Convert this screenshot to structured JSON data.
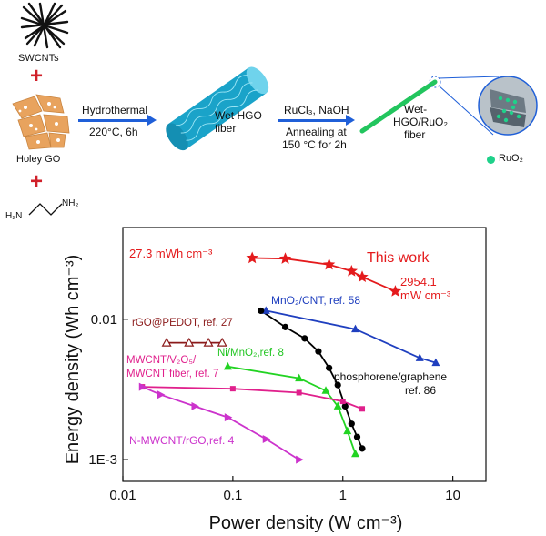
{
  "scheme": {
    "swcnt_label": "SWCNTs",
    "holey_go_label": "Holey GO",
    "amine_left": "H₂N",
    "amine_right": "NH₂",
    "step1_line1": "Hydrothermal",
    "step1_line2": "220°C, 6h",
    "wet_hgo_line1": "Wet HGO",
    "wet_hgo_line2": "fiber",
    "step2_line1": "RuCl₃, NaOH",
    "step2_line2": "Annealing at",
    "step2_line3": "150 °C for 2h",
    "product_line1": "Wet-",
    "product_line2": "HGO/RuO₂",
    "product_line3": "fiber",
    "legend_ruo2": "RuO₂",
    "colors": {
      "plus": "#d0202a",
      "arrow": "#1f5fd8",
      "go_sheet": "#e8a35e",
      "fiber": "#1aa3c9",
      "ruo2_fiber": "#22c55e",
      "ruo2_dot": "#1fd18a"
    }
  },
  "chart_data": {
    "type": "scatter",
    "xlabel": "Power density (W cm⁻³)",
    "ylabel": "Energy density (Wh cm⁻³)",
    "xscale": "log",
    "yscale": "log",
    "xlim": [
      0.01,
      20
    ],
    "ylim": [
      0.0007,
      0.045
    ],
    "xticks": [
      0.01,
      0.1,
      1,
      10
    ],
    "xtick_labels": [
      "0.01",
      "0.1",
      "1",
      "10"
    ],
    "yticks": [
      0.001,
      0.01
    ],
    "ytick_labels": [
      "1E-3",
      "0.01"
    ],
    "series": [
      {
        "name": "This work",
        "color": "#e41a1c",
        "marker": "star",
        "x": [
          0.15,
          0.3,
          0.75,
          1.2,
          1.5,
          3.0
        ],
        "y": [
          0.0273,
          0.027,
          0.0245,
          0.022,
          0.02,
          0.0158
        ]
      },
      {
        "name": "MnO₂/CNT, ref. 58",
        "color": "#1f3fbf",
        "marker": "triangle",
        "x": [
          0.2,
          1.3,
          5.0,
          7.0
        ],
        "y": [
          0.0115,
          0.0085,
          0.0053,
          0.0049
        ]
      },
      {
        "name": "phosphorene/graphene ref. 86",
        "color": "#000000",
        "marker": "circle",
        "x": [
          0.18,
          0.3,
          0.45,
          0.6,
          0.75,
          0.9,
          1.05,
          1.2,
          1.35,
          1.5
        ],
        "y": [
          0.0115,
          0.0088,
          0.0073,
          0.0059,
          0.0045,
          0.0034,
          0.0024,
          0.0018,
          0.00145,
          0.0012
        ]
      },
      {
        "name": "rGO@PEDOT, ref. 27",
        "color": "#8b1a1a",
        "marker": "open-triangle",
        "x": [
          0.025,
          0.04,
          0.06,
          0.08
        ],
        "y": [
          0.0068,
          0.0068,
          0.0068,
          0.0068
        ]
      },
      {
        "name": "Ni/MnO₂,ref. 8",
        "color": "#22d322",
        "marker": "triangle",
        "x": [
          0.09,
          0.4,
          0.7,
          0.9,
          1.1,
          1.3
        ],
        "y": [
          0.0046,
          0.0038,
          0.0031,
          0.0024,
          0.0016,
          0.0011
        ]
      },
      {
        "name": "MWCNT/V₂O₅/MWCNT fiber, ref. 7",
        "color": "#e0208c",
        "marker": "square",
        "x": [
          0.015,
          0.1,
          0.4,
          1.0,
          1.5
        ],
        "y": [
          0.0033,
          0.0032,
          0.003,
          0.0026,
          0.0023
        ]
      },
      {
        "name": "N-MWCNT/rGO,ref. 4",
        "color": "#cc33cc",
        "marker": "triangle-right",
        "x": [
          0.015,
          0.022,
          0.045,
          0.09,
          0.2,
          0.4
        ],
        "y": [
          0.0033,
          0.0029,
          0.0024,
          0.002,
          0.0014,
          0.001
        ]
      }
    ],
    "annotations": {
      "top_energy": "27.3 mWh cm⁻³",
      "this_work": "This work",
      "power_max_line1": "2954.1",
      "power_max_line2": "mW cm⁻³",
      "mno2_cnt": "MnO₂/CNT, ref. 58",
      "rgo_pedot": "rGO@PEDOT, ref. 27",
      "ni_mno2": "Ni/MnO₂,ref. 8",
      "mwcnt_line1": "MWCNT/V₂O₅/",
      "mwcnt_line2": "MWCNT fiber, ref. 7",
      "phos_line1": "phosphorene/graphene",
      "phos_line2": "ref. 86",
      "nmwcnt": "N-MWCNT/rGO,ref. 4"
    }
  }
}
